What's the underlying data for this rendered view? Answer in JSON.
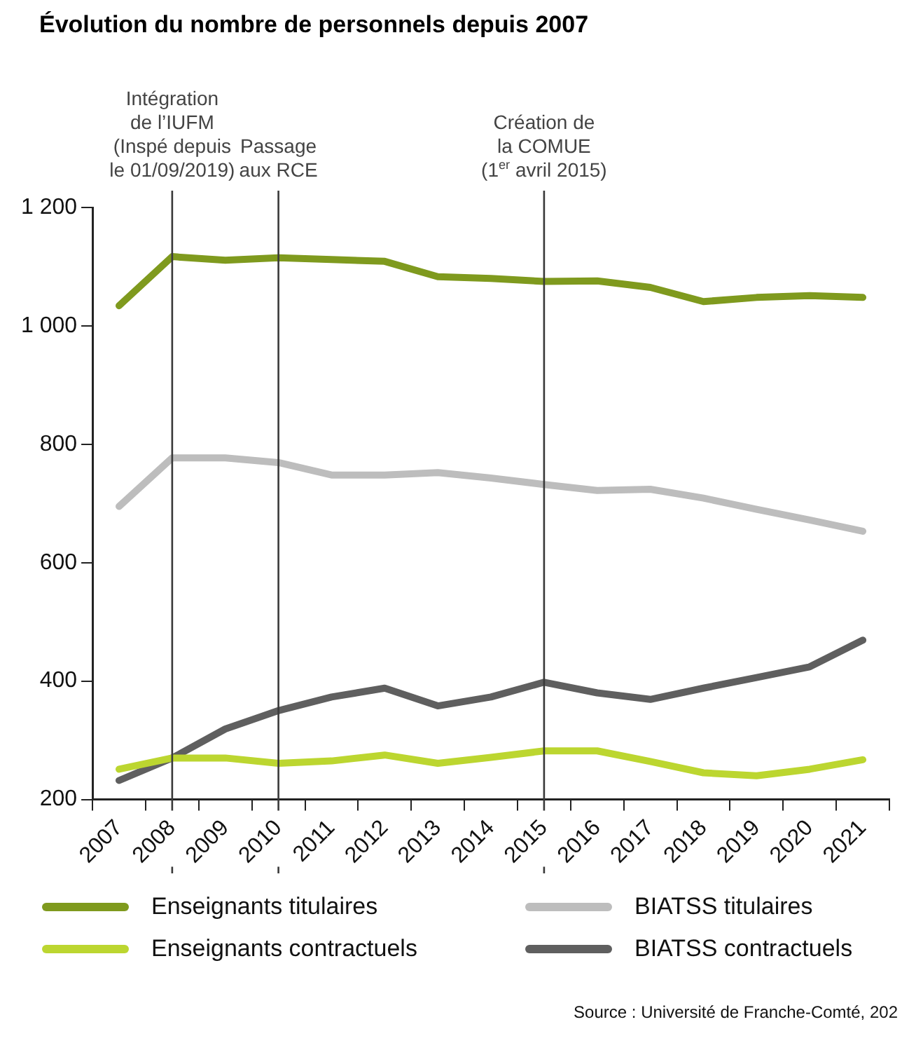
{
  "chart_data": {
    "type": "line",
    "title": "Évolution du nombre de personnels depuis 2007",
    "categories": [
      "2007",
      "2008",
      "2009",
      "2010",
      "2011",
      "2012",
      "2013",
      "2014",
      "2015",
      "2016",
      "2017",
      "2018",
      "2019",
      "2020",
      "2021"
    ],
    "series": [
      {
        "name": "Enseignants titulaires",
        "color": "#7f9a1e",
        "values": [
          1034,
          1117,
          1111,
          1115,
          1112,
          1109,
          1083,
          1080,
          1075,
          1076,
          1065,
          1041,
          1048,
          1051,
          1048
        ]
      },
      {
        "name": "BIATSS titulaires",
        "color": "#bdbdbd",
        "values": [
          695,
          777,
          777,
          769,
          748,
          748,
          752,
          743,
          732,
          722,
          724,
          709,
          690,
          672,
          653
        ]
      },
      {
        "name": "Enseignants contractuels",
        "color": "#bcd630",
        "values": [
          251,
          270,
          270,
          261,
          265,
          275,
          261,
          271,
          282,
          282,
          264,
          245,
          240,
          251,
          267
        ]
      },
      {
        "name": "BIATSS contractuels",
        "color": "#5f5f5f",
        "values": [
          232,
          270,
          319,
          350,
          373,
          388,
          358,
          373,
          398,
          380,
          369,
          388,
          406,
          424,
          469
        ]
      }
    ],
    "ylim": [
      200,
      1200
    ],
    "yticks": [
      200,
      400,
      600,
      800,
      {
        "value": 1000,
        "label": "1 000"
      },
      {
        "value": 1200,
        "label": "1 200"
      }
    ],
    "grid": false,
    "legend": "bottom",
    "marker": "none",
    "line_style": "solid",
    "ref_lines": [
      {
        "axis": "x",
        "value": "2008",
        "label": "Intégration\nde l’IUFM\n(Inspé depuis\nle 01/09/2019)",
        "color": "#3a3a3a"
      },
      {
        "axis": "x",
        "value": "2010",
        "label": "Passage\naux RCE",
        "color": "#3a3a3a"
      },
      {
        "axis": "x",
        "value": "2015",
        "label": "Création de\nla COMUE\n(1$^{er}$ avril 2015)",
        "color": "#3a3a3a"
      }
    ],
    "annotations": [
      "Source : Université de Franche-Comté, 202"
    ]
  }
}
